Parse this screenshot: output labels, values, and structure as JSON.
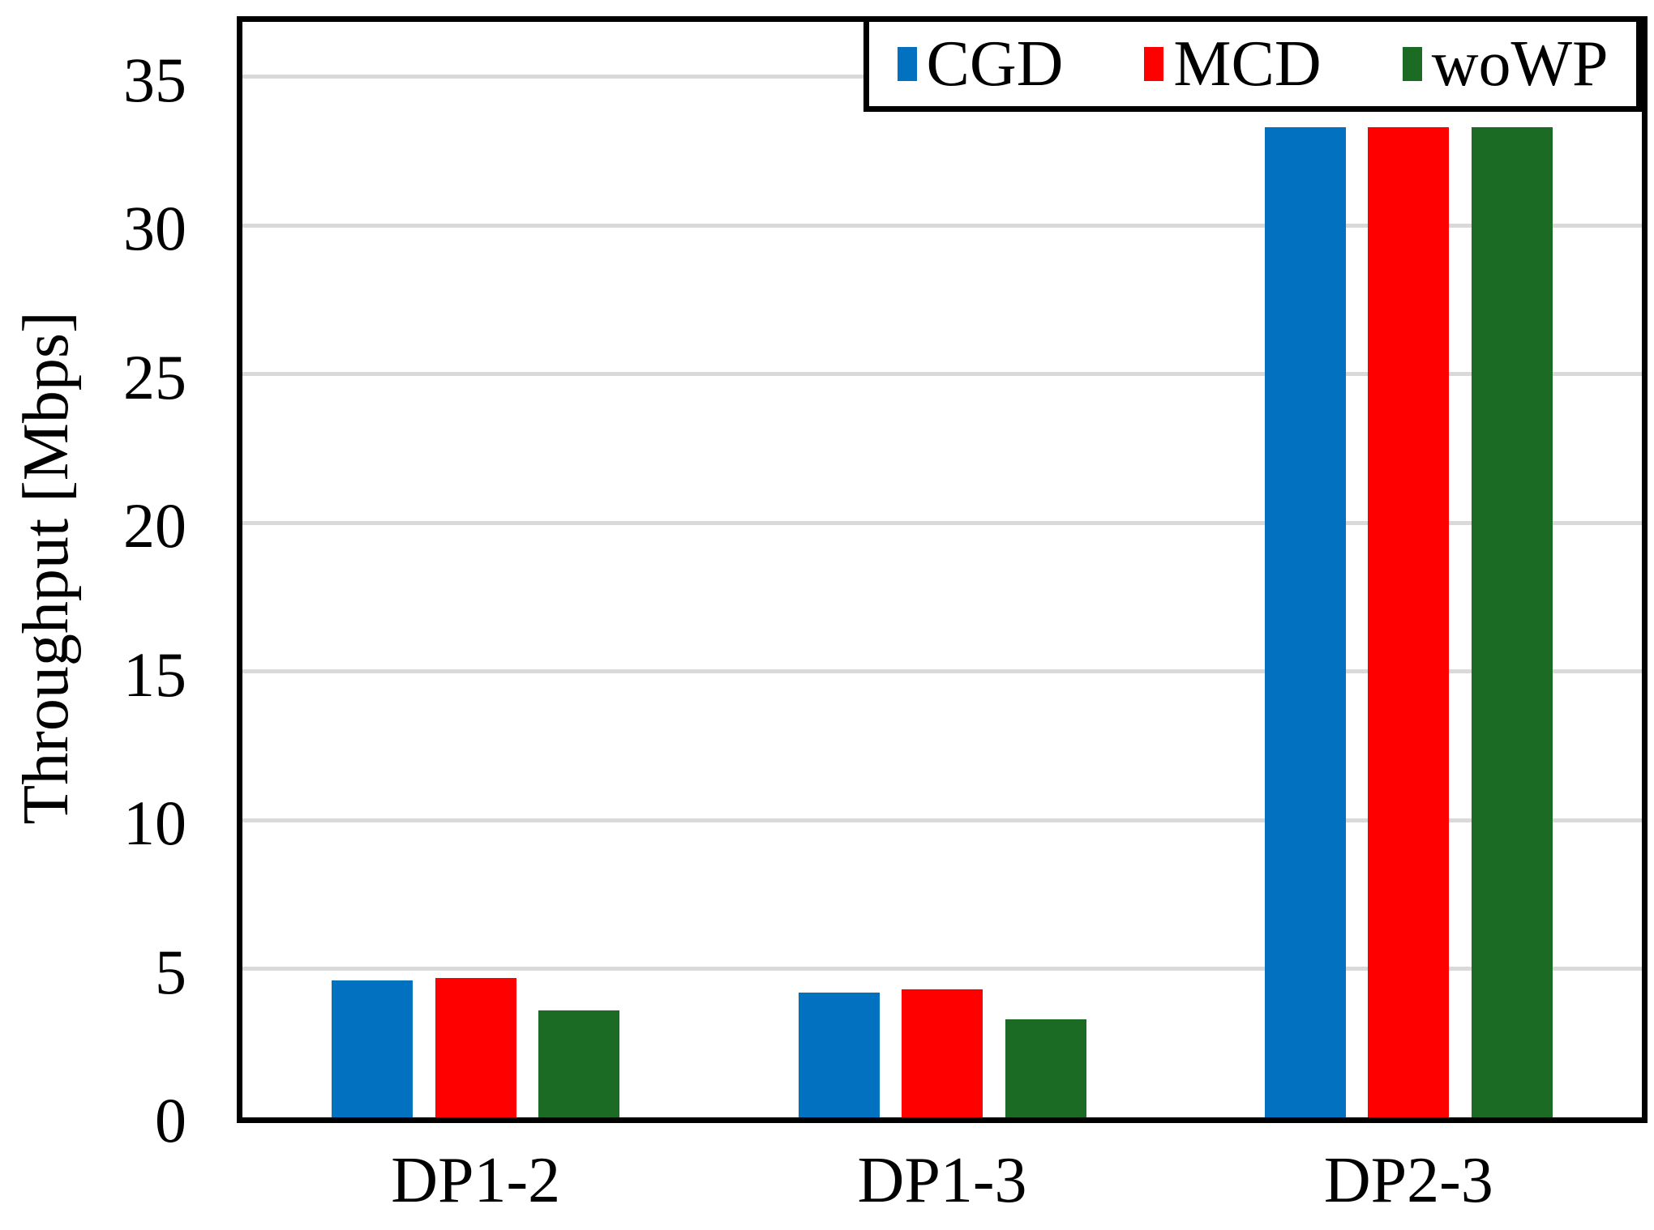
{
  "chart_data": {
    "type": "bar",
    "title": "",
    "categories": [
      "DP1-2",
      "DP1-3",
      "DP2-3"
    ],
    "series": [
      {
        "name": "CGD",
        "color": "#0171C0",
        "values": [
          4.6,
          4.2,
          33.3
        ]
      },
      {
        "name": "MCD",
        "color": "#FF0000",
        "values": [
          4.7,
          4.3,
          33.3
        ]
      },
      {
        "name": "woWP",
        "color": "#1B6B24",
        "values": [
          3.6,
          3.3,
          33.3
        ]
      }
    ],
    "xlabel": "",
    "ylabel": "Throughput [Mbps]",
    "y_ticks": [
      0,
      5,
      10,
      15,
      20,
      25,
      30,
      35
    ],
    "ylim": [
      0,
      36.8
    ],
    "grid": true,
    "gridline_color": "#D9D9D9",
    "axis_color": "#000000",
    "legend_position": "top-right"
  }
}
